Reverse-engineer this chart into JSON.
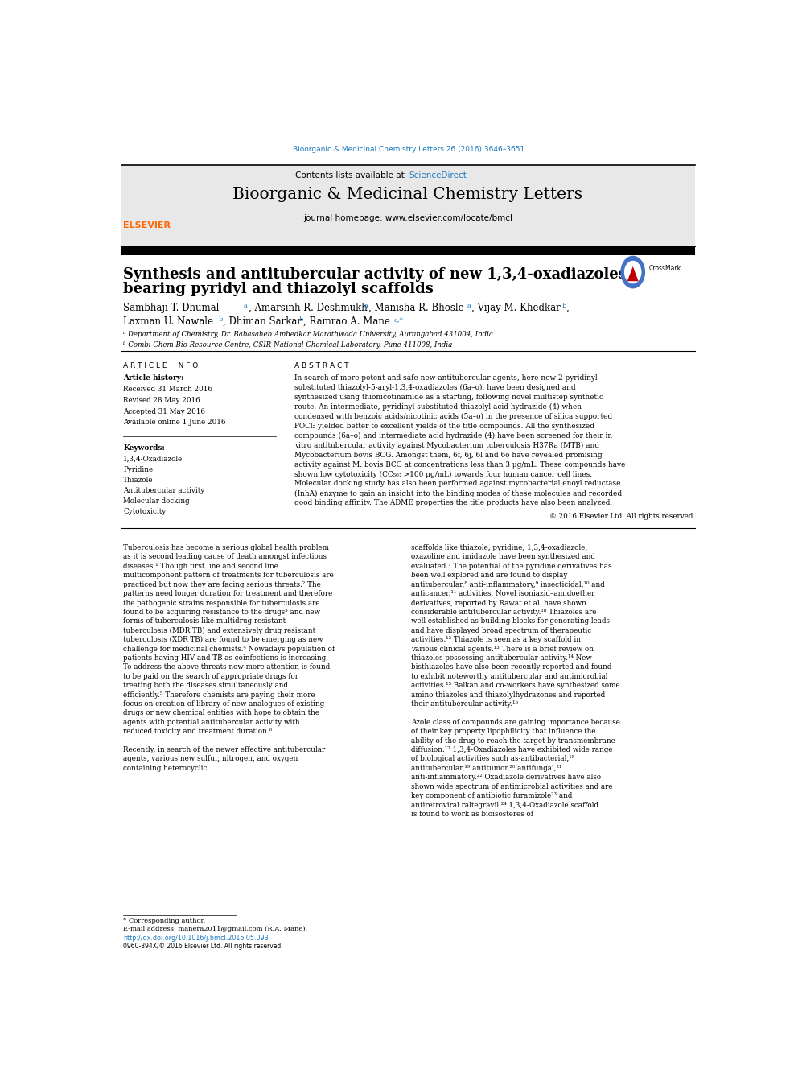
{
  "background_color": "#ffffff",
  "page_width": 9.92,
  "page_height": 13.23,
  "top_url": "Bioorganic & Medicinal Chemistry Letters 26 (2016) 3646–3651",
  "top_url_color": "#1a7abf",
  "journal_header_bg": "#e8e8e8",
  "journal_name": "Bioorganic & Medicinal Chemistry Letters",
  "contents_line": "Contents lists available at ScienceDirect",
  "sciencedirect_color": "#1a7abf",
  "journal_homepage": "journal homepage: www.elsevier.com/locate/bmcl",
  "article_title_line1": "Synthesis and antitubercular activity of new 1,3,4-oxadiazoles",
  "article_title_line2": "bearing pyridyl and thiazolyl scaffolds",
  "affil1": "ᵃ Department of Chemistry, Dr. Babasaheb Ambedkar Marathwada University, Aurangabad 431004, India",
  "affil2": "ᵇ Combi Chem-Bio Resource Centre, CSIR-National Chemical Laboratory, Pune 411008, India",
  "article_info_header": "ARTICLE INFO",
  "abstract_header": "ABSTRACT",
  "article_history_label": "Article history:",
  "received": "Received 31 March 2016",
  "revised": "Revised 28 May 2016",
  "accepted": "Accepted 31 May 2016",
  "available": "Available online 1 June 2016",
  "keywords_label": "Keywords:",
  "keywords": [
    "1,3,4-Oxadiazole",
    "Pyridine",
    "Thiazole",
    "Antitubercular activity",
    "Molecular docking",
    "Cytotoxicity"
  ],
  "abstract_text": "In search of more potent and safe new antitubercular agents, here new 2-pyridinyl substituted thiazolyl-5-aryl-1,3,4-oxadiazoles (6a–o), have been designed and synthesized using thionicotinamide as a starting, following novel multistep synthetic route. An intermediate, pyridinyl substituted thiazolyl acid hydrazide (4) when condensed with benzoic acids/nicotinic acids (5a–o) in the presence of silica supported POCl₂ yielded better to excellent yields of the title compounds. All the synthesized compounds (6a–o) and intermediate acid hydrazide (4) have been screened for their in vitro antitubercular activity against Mycobacterium tuberculosis H37Ra (MTB) and Mycobacterium bovis BCG. Amongst them, 6f, 6j, 6l and 6o have revealed promising activity against M. bovis BCG at concentrations less than 3 μg/mL. These compounds have shown low cytotoxicity (CC₅₀: >100 μg/mL) towards four human cancer cell lines. Molecular docking study has also been performed against mycobacterial enoyl reductase (InhA) enzyme to gain an insight into the binding modes of these molecules and recorded good binding affinity. The ADME properties the title products have also been analyzed.",
  "copyright": "© 2016 Elsevier Ltd. All rights reserved.",
  "intro_col1": "Tuberculosis has become a serious global health problem as it is second leading cause of death amongst infectious diseases.¹ Though first line and second line multicomponent pattern of treatments for tuberculosis are practiced but now they are facing serious threats.² The patterns need longer duration for treatment and therefore the pathogenic strains responsible for tuberculosis are found to be acquiring resistance to the drugs³ and new forms of tuberculosis like multidrug resistant tuberculosis (MDR TB) and extensively drug resistant tuberculosis (XDR TB) are found to be emerging as new challenge for medicinal chemists.⁴ Nowadays population of patients having HIV and TB as coinfections is increasing. To address the above threats now more attention is found to be paid on the search of appropriate drugs for treating both the diseases simultaneously and efficiently.⁵ Therefore chemists are paying their more focus on creation of library of new analogues of existing drugs or new chemical entities with hope to obtain the agents with potential antitubercular activity with reduced toxicity and treatment duration.⁶",
  "intro_col1b": "    Recently, in search of the newer effective antitubercular agents, various new sulfur, nitrogen, and oxygen containing heterocyclic",
  "intro_col2": "scaffolds like thiazole, pyridine, 1,3,4-oxadiazole, oxazoline and imidazole have been synthesized and evaluated.⁷ The potential of the pyridine derivatives has been well explored and are found to display antitubercular,⁸ anti-inflammatory,⁹ insecticidal,¹⁰ and anticancer,¹¹ activities. Novel isoniazid–amidoether derivatives, reported by Rawat et al. have shown considerable antitubercular activity.¹ᵇ Thiazoles are well established as building blocks for generating leads and have displayed broad spectrum of therapeutic activities.¹² Thiazole is seen as a key scaffold in various clinical agents.¹³ There is a brief review on thiazoles possessing antitubercular activity.¹⁴ New bisthiazoles have also been recently reported and found to exhibit noteworthy antitubercular and antimicrobial activities.¹⁵ Balkan and co-workers have synthesized some amino thiazoles and thiazolylhydrazones and reported their antitubercular activity.¹ᵇ",
  "intro_col2b": "    Azole class of compounds are gaining importance because of their key property lipophilicity that influence the ability of the drug to reach the target by transmembrane diffusion.¹⁷ 1,3,4-Oxadiazoles have exhibited wide range of biological activities such as-antibacterial,¹⁸ antitubercular,¹⁹ antitumor,²⁰ antifungal,²¹ anti-inflammatory.²² Oxadiazole derivatives have also shown wide spectrum of antimicrobial activities and are key component of antibiotic furamizole²³ and antiretroviral raltegravil.²⁴ 1,3,4-Oxadiazole scaffold is found to work as bioisosteres of",
  "footer_corresponding": "* Corresponding author.",
  "footer_email": "E-mail address: manera2011@gmail.com (R.A. Mane).",
  "footer_doi": "http://dx.doi.org/10.1016/j.bmcl.2016.05.093",
  "footer_issn": "0960-894X/© 2016 Elsevier Ltd. All rights reserved.",
  "elsevier_orange": "#ff6600",
  "text_color": "#000000",
  "link_color": "#1a7abf"
}
